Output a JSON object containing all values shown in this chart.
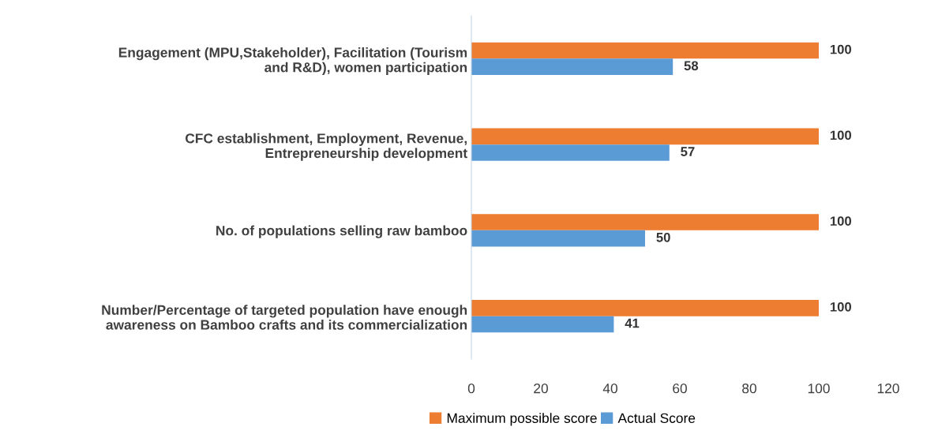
{
  "chart_data": {
    "type": "bar",
    "orientation": "horizontal",
    "categories": [
      "Engagement (MPU,Stakeholder), Facilitation (Tourism\nand R&D), women participation",
      "CFC establishment, Employment, Revenue,\nEntrepreneurship development",
      "No. of populations selling raw bamboo",
      "Number/Percentage of targeted population have enough\nawareness on Bamboo crafts and its commercialization"
    ],
    "series": [
      {
        "name": "Maximum possible score",
        "color": "#ed7d31",
        "values": [
          100,
          100,
          100,
          100
        ]
      },
      {
        "name": "Actual Score",
        "color": "#5b9bd5",
        "values": [
          58,
          57,
          50,
          41
        ]
      }
    ],
    "xlim": [
      0,
      120
    ],
    "xticks": [
      0,
      20,
      40,
      60,
      80,
      100,
      120
    ],
    "data_labels": true,
    "grid": false,
    "legend": "bottom"
  }
}
